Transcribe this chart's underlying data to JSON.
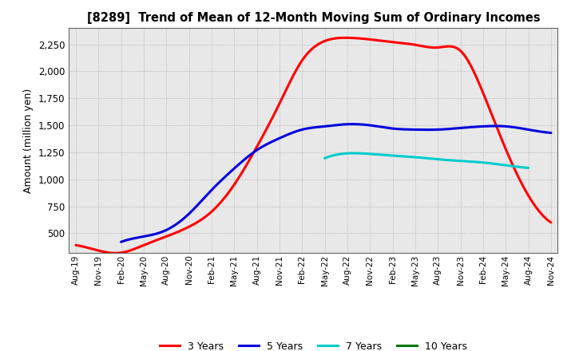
{
  "title": "[8289]  Trend of Mean of 12-Month Moving Sum of Ordinary Incomes",
  "ylabel": "Amount (million yen)",
  "background_color": "#ffffff",
  "plot_bg_color": "#e8e8e8",
  "grid_color": "#999999",
  "x_labels": [
    "Aug-19",
    "Nov-19",
    "Feb-20",
    "May-20",
    "Aug-20",
    "Nov-20",
    "Feb-21",
    "May-21",
    "Aug-21",
    "Nov-21",
    "Feb-22",
    "May-22",
    "Aug-22",
    "Nov-22",
    "Feb-23",
    "May-23",
    "Aug-23",
    "Nov-23",
    "Feb-24",
    "May-24",
    "Aug-24",
    "Nov-24"
  ],
  "ylim": [
    320,
    2400
  ],
  "yticks": [
    500,
    750,
    1000,
    1250,
    1500,
    1750,
    2000,
    2250
  ],
  "series": {
    "3 Years": {
      "color": "#ff0000",
      "values": [
        390,
        340,
        320,
        390,
        470,
        560,
        700,
        950,
        1300,
        1700,
        2100,
        2280,
        2310,
        2295,
        2270,
        2245,
        2220,
        2190,
        1800,
        1280,
        850,
        600
      ]
    },
    "5 Years": {
      "color": "#0000dd",
      "values": [
        null,
        null,
        420,
        470,
        530,
        680,
        900,
        1100,
        1270,
        1380,
        1460,
        1490,
        1510,
        1500,
        1470,
        1460,
        1460,
        1475,
        1490,
        1490,
        1460,
        1430
      ]
    },
    "7 Years": {
      "color": "#00cccc",
      "values": [
        null,
        null,
        null,
        null,
        null,
        null,
        null,
        null,
        null,
        null,
        null,
        1195,
        1240,
        1235,
        1220,
        1205,
        1185,
        1170,
        1155,
        1130,
        1105,
        null
      ]
    },
    "10 Years": {
      "color": "#007700",
      "values": [
        null,
        null,
        null,
        null,
        null,
        null,
        null,
        null,
        null,
        null,
        null,
        null,
        null,
        null,
        null,
        null,
        null,
        null,
        null,
        null,
        null,
        null
      ]
    }
  },
  "legend": [
    {
      "label": "3 Years",
      "color": "#ff0000"
    },
    {
      "label": "5 Years",
      "color": "#0000dd"
    },
    {
      "label": "7 Years",
      "color": "#00cccc"
    },
    {
      "label": "10 Years",
      "color": "#007700"
    }
  ]
}
